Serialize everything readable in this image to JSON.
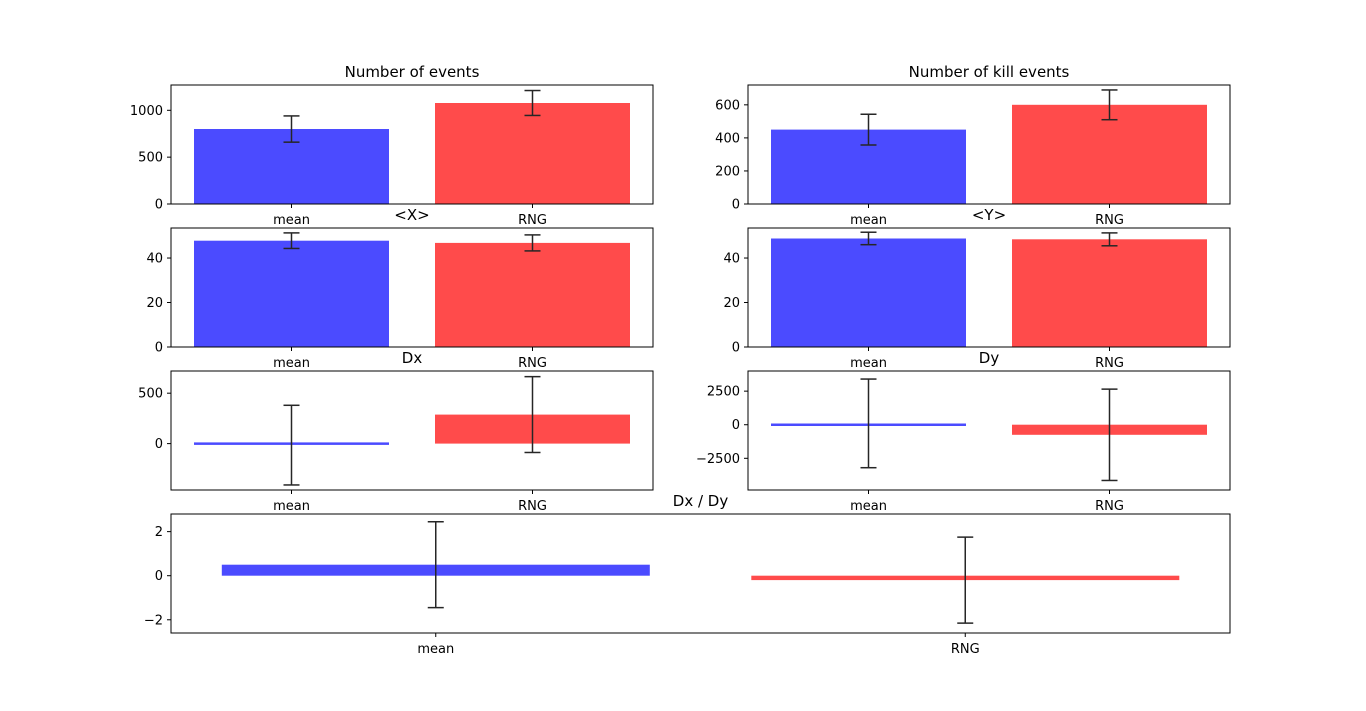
{
  "chart_data": [
    {
      "type": "bar",
      "title": "Number of events",
      "categories": [
        "mean",
        "RNG"
      ],
      "values": [
        800,
        1078
      ],
      "errors": [
        140,
        133
      ],
      "colors": [
        "#4b4bff",
        "#ff4b4b"
      ],
      "ylim": [
        0,
        1270
      ],
      "yticks": [
        0,
        500,
        1000
      ],
      "ytick_labels": [
        "0",
        "500",
        "1000"
      ]
    },
    {
      "type": "bar",
      "title": "Number of kill events",
      "categories": [
        "mean",
        "RNG"
      ],
      "values": [
        450,
        600
      ],
      "errors": [
        93,
        90
      ],
      "colors": [
        "#4b4bff",
        "#ff4b4b"
      ],
      "ylim": [
        0,
        720
      ],
      "yticks": [
        0,
        200,
        400,
        600
      ],
      "ytick_labels": [
        "0",
        "200",
        "400",
        "600"
      ]
    },
    {
      "type": "bar",
      "title": "<X>",
      "categories": [
        "mean",
        "RNG"
      ],
      "values": [
        47.8,
        46.8
      ],
      "errors": [
        3.5,
        3.6
      ],
      "colors": [
        "#4b4bff",
        "#ff4b4b"
      ],
      "ylim": [
        0,
        53.5
      ],
      "yticks": [
        0,
        20,
        40
      ],
      "ytick_labels": [
        "0",
        "20",
        "40"
      ]
    },
    {
      "type": "bar",
      "title": "<Y>",
      "categories": [
        "mean",
        "RNG"
      ],
      "values": [
        48.8,
        48.4
      ],
      "errors": [
        2.8,
        2.9
      ],
      "colors": [
        "#4b4bff",
        "#ff4b4b"
      ],
      "ylim": [
        0,
        53.5
      ],
      "yticks": [
        0,
        20,
        40
      ],
      "ytick_labels": [
        "0",
        "20",
        "40"
      ]
    },
    {
      "type": "bar",
      "title": "Dx",
      "categories": [
        "mean",
        "RNG"
      ],
      "values": [
        -15,
        288
      ],
      "errors": [
        395,
        376
      ],
      "colors": [
        "#4b4bff",
        "#ff4b4b"
      ],
      "ylim": [
        -460,
        720
      ],
      "yticks": [
        0,
        500
      ],
      "ytick_labels": [
        "0",
        "500"
      ]
    },
    {
      "type": "bar",
      "title": "Dy",
      "categories": [
        "mean",
        "RNG"
      ],
      "values": [
        100,
        -750
      ],
      "errors": [
        3300,
        3400
      ],
      "colors": [
        "#4b4bff",
        "#ff4b4b"
      ],
      "ylim": [
        -4860,
        4000
      ],
      "yticks": [
        -2500,
        0,
        2500
      ],
      "ytick_labels": [
        "−2500",
        "0",
        "2500"
      ]
    },
    {
      "type": "bar",
      "title": "Dx / Dy",
      "categories": [
        "mean",
        "RNG"
      ],
      "values": [
        0.5,
        -0.2
      ],
      "errors": [
        1.95,
        1.95
      ],
      "colors": [
        "#4b4bff",
        "#ff4b4b"
      ],
      "ylim": [
        -2.6,
        2.8
      ],
      "yticks": [
        -2,
        0,
        2
      ],
      "ytick_labels": [
        "−2",
        "0",
        "2"
      ]
    }
  ]
}
